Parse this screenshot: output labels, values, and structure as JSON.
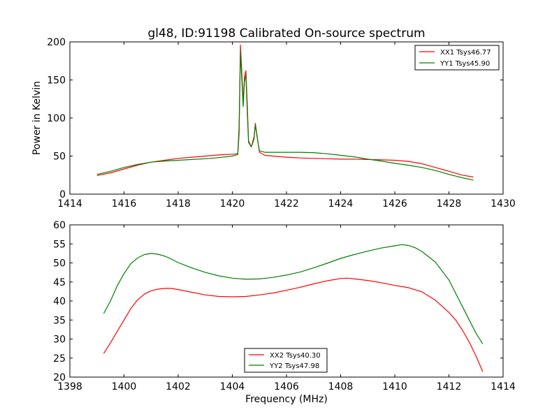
{
  "chart_data": [
    {
      "type": "line",
      "title": "gl48, ID:91198 Calibrated On-source spectrum",
      "xlabel": "",
      "ylabel": "Power in Kelvin",
      "xlim": [
        1414,
        1430
      ],
      "ylim": [
        0,
        200
      ],
      "xticks": [
        "1414",
        "1416",
        "1418",
        "1420",
        "1422",
        "1424",
        "1426",
        "1428",
        "1430"
      ],
      "yticks": [
        "0",
        "50",
        "100",
        "150",
        "200"
      ],
      "grid": false,
      "legend_position": "upper right",
      "series": [
        {
          "name": "XX1 Tsys46.77",
          "color": "#ff0000",
          "points": [
            [
              1415.0,
              24.5
            ],
            [
              1415.5,
              28
            ],
            [
              1416.0,
              33
            ],
            [
              1416.5,
              38
            ],
            [
              1417.0,
              42
            ],
            [
              1417.5,
              44.5
            ],
            [
              1418.0,
              47
            ],
            [
              1418.5,
              48.5
            ],
            [
              1419.0,
              50
            ],
            [
              1419.5,
              51.5
            ],
            [
              1420.0,
              52.5
            ],
            [
              1420.2,
              53
            ],
            [
              1420.25,
              90
            ],
            [
              1420.3,
              196
            ],
            [
              1420.35,
              160
            ],
            [
              1420.4,
              120
            ],
            [
              1420.45,
              155
            ],
            [
              1420.5,
              162
            ],
            [
              1420.55,
              120
            ],
            [
              1420.6,
              70
            ],
            [
              1420.7,
              62
            ],
            [
              1420.8,
              72
            ],
            [
              1420.85,
              93
            ],
            [
              1420.9,
              80
            ],
            [
              1421.0,
              55
            ],
            [
              1421.2,
              51
            ],
            [
              1421.5,
              50
            ],
            [
              1422.0,
              48.5
            ],
            [
              1422.5,
              47.5
            ],
            [
              1423.0,
              47
            ],
            [
              1423.5,
              46.5
            ],
            [
              1424.0,
              46
            ],
            [
              1424.5,
              46
            ],
            [
              1425.0,
              45.5
            ],
            [
              1425.5,
              45
            ],
            [
              1426.0,
              44.5
            ],
            [
              1426.5,
              43
            ],
            [
              1427.0,
              40
            ],
            [
              1427.5,
              35
            ],
            [
              1428.0,
              30
            ],
            [
              1428.5,
              25
            ],
            [
              1428.9,
              22.5
            ]
          ]
        },
        {
          "name": "YY1 Tsys45.90",
          "color": "#007f00",
          "points": [
            [
              1415.0,
              26
            ],
            [
              1415.5,
              30
            ],
            [
              1416.0,
              35
            ],
            [
              1416.5,
              39
            ],
            [
              1417.0,
              42
            ],
            [
              1417.5,
              43.5
            ],
            [
              1418.0,
              44.5
            ],
            [
              1418.5,
              45.5
            ],
            [
              1419.0,
              46.5
            ],
            [
              1419.5,
              48
            ],
            [
              1420.0,
              50
            ],
            [
              1420.2,
              52
            ],
            [
              1420.25,
              80
            ],
            [
              1420.3,
              188
            ],
            [
              1420.35,
              150
            ],
            [
              1420.4,
              115
            ],
            [
              1420.45,
              148
            ],
            [
              1420.5,
              157
            ],
            [
              1420.55,
              110
            ],
            [
              1420.6,
              68
            ],
            [
              1420.7,
              62
            ],
            [
              1420.8,
              75
            ],
            [
              1420.85,
              91
            ],
            [
              1420.9,
              78
            ],
            [
              1421.0,
              57
            ],
            [
              1421.2,
              55
            ],
            [
              1421.5,
              55
            ],
            [
              1422.0,
              55
            ],
            [
              1422.5,
              55
            ],
            [
              1423.0,
              54.5
            ],
            [
              1423.5,
              53
            ],
            [
              1424.0,
              51
            ],
            [
              1424.5,
              49
            ],
            [
              1425.0,
              46
            ],
            [
              1425.5,
              43.5
            ],
            [
              1426.0,
              40.5
            ],
            [
              1426.5,
              38
            ],
            [
              1427.0,
              35
            ],
            [
              1427.5,
              31
            ],
            [
              1428.0,
              26
            ],
            [
              1428.5,
              21.5
            ],
            [
              1428.9,
              18.5
            ]
          ]
        }
      ]
    },
    {
      "type": "line",
      "title": "",
      "xlabel": "Frequency (MHz)",
      "ylabel": "",
      "xlim": [
        1398,
        1414
      ],
      "ylim": [
        20,
        60
      ],
      "xticks": [
        "1398",
        "1400",
        "1402",
        "1404",
        "1406",
        "1408",
        "1410",
        "1412",
        "1414"
      ],
      "yticks": [
        "20",
        "25",
        "30",
        "35",
        "40",
        "45",
        "50",
        "55",
        "60"
      ],
      "grid": false,
      "legend_position": "lower center",
      "series": [
        {
          "name": "XX2 Tsys40.30",
          "color": "#ff0000",
          "points": [
            [
              1399.25,
              26.2
            ],
            [
              1399.5,
              29
            ],
            [
              1399.75,
              32
            ],
            [
              1400.0,
              35
            ],
            [
              1400.25,
              38
            ],
            [
              1400.5,
              40.3
            ],
            [
              1400.75,
              41.8
            ],
            [
              1401.0,
              42.7
            ],
            [
              1401.25,
              43.1
            ],
            [
              1401.5,
              43.3
            ],
            [
              1401.75,
              43.3
            ],
            [
              1402.0,
              43
            ],
            [
              1402.5,
              42.3
            ],
            [
              1403.0,
              41.6
            ],
            [
              1403.5,
              41.2
            ],
            [
              1404.0,
              41.1
            ],
            [
              1404.5,
              41.2
            ],
            [
              1405.0,
              41.6
            ],
            [
              1405.5,
              42.1
            ],
            [
              1406.0,
              42.8
            ],
            [
              1406.5,
              43.6
            ],
            [
              1407.0,
              44.5
            ],
            [
              1407.5,
              45.3
            ],
            [
              1408.0,
              45.9
            ],
            [
              1408.25,
              46
            ],
            [
              1408.5,
              45.8
            ],
            [
              1409.0,
              45.4
            ],
            [
              1409.5,
              44.8
            ],
            [
              1410.0,
              44.1
            ],
            [
              1410.5,
              43.5
            ],
            [
              1411.0,
              42.4
            ],
            [
              1411.5,
              40.2
            ],
            [
              1412.0,
              37
            ],
            [
              1412.25,
              35
            ],
            [
              1412.5,
              32.3
            ],
            [
              1412.75,
              29.2
            ],
            [
              1413.0,
              25.5
            ],
            [
              1413.25,
              21.4
            ]
          ]
        },
        {
          "name": "YY2 Tsys47.98",
          "color": "#007f00",
          "points": [
            [
              1399.25,
              36.7
            ],
            [
              1399.5,
              40
            ],
            [
              1399.75,
              44
            ],
            [
              1400.0,
              47.2
            ],
            [
              1400.25,
              49.8
            ],
            [
              1400.5,
              51.3
            ],
            [
              1400.75,
              52.2
            ],
            [
              1401.0,
              52.5
            ],
            [
              1401.25,
              52.3
            ],
            [
              1401.5,
              51.8
            ],
            [
              1401.75,
              51
            ],
            [
              1402.0,
              50.1
            ],
            [
              1402.5,
              48.7
            ],
            [
              1403.0,
              47.5
            ],
            [
              1403.5,
              46.6
            ],
            [
              1404.0,
              46
            ],
            [
              1404.5,
              45.7
            ],
            [
              1405.0,
              45.8
            ],
            [
              1405.5,
              46.2
            ],
            [
              1406.0,
              46.8
            ],
            [
              1406.5,
              47.6
            ],
            [
              1407.0,
              48.7
            ],
            [
              1407.5,
              49.9
            ],
            [
              1408.0,
              51.2
            ],
            [
              1408.5,
              52.2
            ],
            [
              1409.0,
              53.1
            ],
            [
              1409.5,
              53.9
            ],
            [
              1410.0,
              54.5
            ],
            [
              1410.25,
              54.8
            ],
            [
              1410.5,
              54.6
            ],
            [
              1410.75,
              54
            ],
            [
              1411.0,
              53
            ],
            [
              1411.5,
              50.2
            ],
            [
              1412.0,
              45.5
            ],
            [
              1412.25,
              42
            ],
            [
              1412.5,
              38.5
            ],
            [
              1412.75,
              35
            ],
            [
              1413.0,
              31.5
            ],
            [
              1413.25,
              28.7
            ]
          ]
        }
      ]
    }
  ]
}
